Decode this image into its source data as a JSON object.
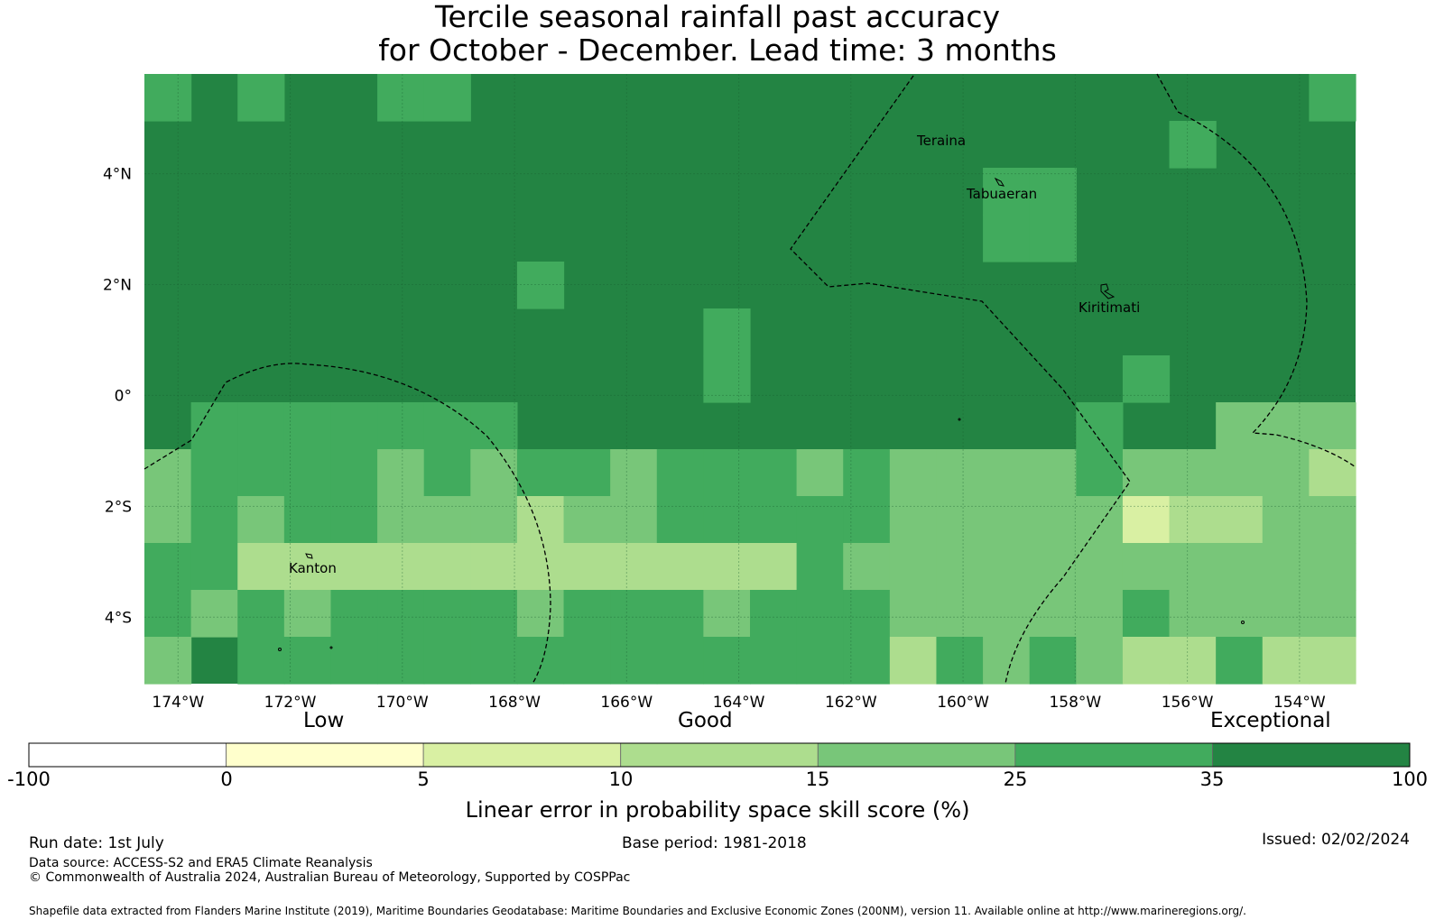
{
  "title": {
    "line1": "Tercile seasonal rainfall past accuracy",
    "line2": "for October - December. Lead time: 3 months"
  },
  "map": {
    "lon_range": [
      -174.6,
      -153.0
    ],
    "lat_range": [
      -5.2,
      5.8
    ],
    "lon_ticks": [
      "174°W",
      "172°W",
      "170°W",
      "168°W",
      "166°W",
      "164°W",
      "162°W",
      "160°W",
      "158°W",
      "156°W",
      "154°W"
    ],
    "lat_ticks": [
      "4°N",
      "2°N",
      "0°",
      "2°S",
      "4°S"
    ],
    "places": [
      "Teraina",
      "Tabuaeran",
      "Kiritimati",
      "Kanton"
    ]
  },
  "colorbar": {
    "categories": [
      "Low",
      "Good",
      "Exceptional"
    ],
    "ticks": [
      "-100",
      "0",
      "5",
      "10",
      "15",
      "25",
      "35",
      "100"
    ],
    "colors": [
      "#ffffff",
      "#ffffcc",
      "#d9f0a3",
      "#addd8e",
      "#78c679",
      "#41ab5d",
      "#238443"
    ],
    "label": "Linear error in probability space skill score (%)"
  },
  "footer": {
    "run_date": "Run date: 1st July",
    "base_period": "Base period: 1981-2018",
    "issued": "Issued: 02/02/2024",
    "data_source": "Data source: ACCESS-S2 and ERA5 Climate Reanalysis",
    "copyright": "© Commonwealth of Australia 2024, Australian Bureau of Meteorology, Supported by COSPPac",
    "shapefile": "Shapefile data extracted from Flanders Marine Institute (2019), Maritime Boundaries Geodatabase: Maritime Boundaries and Exclusive Economic Zones (200NM), version 11. Available online at http://www.marineregions.org/."
  }
}
